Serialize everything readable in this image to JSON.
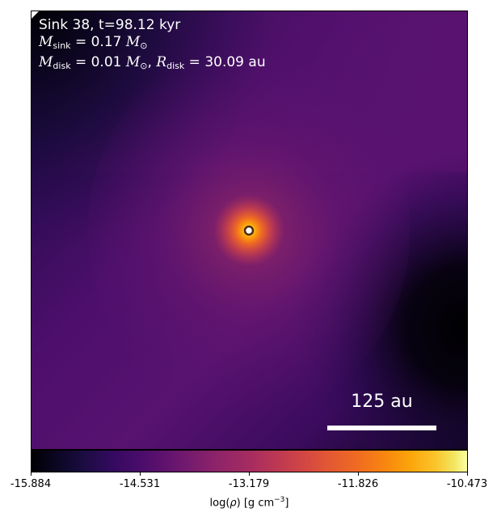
{
  "sink": {
    "label": "Sink 38, t=98.12 kyr",
    "mass_symbol": "M",
    "mass_sub": "sink",
    "mass_value": " = 0.17 ",
    "solar_symbol": "M",
    "solar_sub": "⊙",
    "disk_mass_symbol": "M",
    "disk_mass_sub": "disk",
    "disk_mass_value": " = 0.01 ",
    "disk_radius_symbol": "R",
    "disk_radius_sub": "disk",
    "disk_radius_value": " = 30.09 au"
  },
  "scalebar": {
    "label": "125 au"
  },
  "colorbar": {
    "ticks": [
      "-15.884",
      "-14.531",
      "-13.179",
      "-11.826",
      "-10.473"
    ],
    "label_prefix": "log(",
    "label_rho": "ρ",
    "label_suffix": ") [g cm",
    "label_exp": "−3",
    "label_end": "]",
    "colormap": "inferno"
  }
}
